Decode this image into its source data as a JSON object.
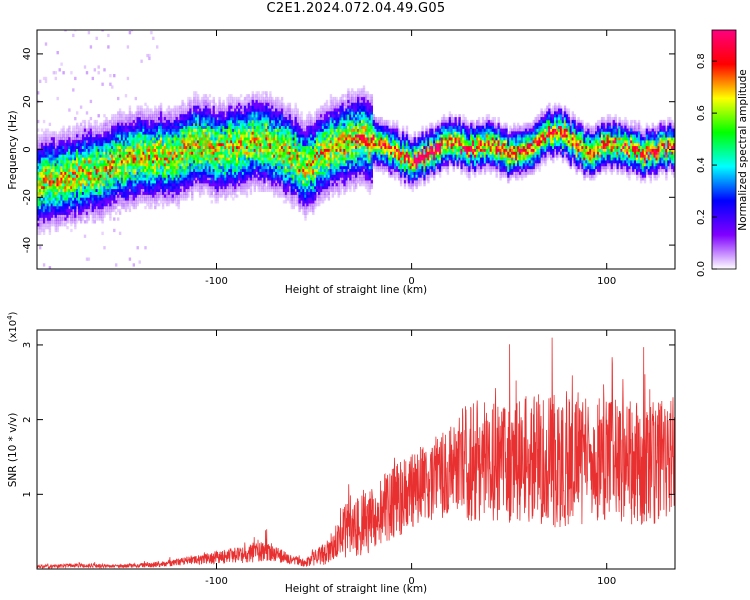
{
  "title": "C2E1.2024.072.04.49.G05",
  "chart_data": [
    {
      "type": "heatmap",
      "name": "spectrogram",
      "xlabel": "Height of straight line (km)",
      "ylabel": "Frequency (Hz)",
      "xlim": [
        -192,
        135
      ],
      "ylim": [
        -50,
        50
      ],
      "x_ticks": [
        -100,
        0,
        100
      ],
      "y_ticks": [
        -40,
        -20,
        0,
        20,
        40
      ],
      "colorbar": {
        "label": "Normalized spectral amplitude",
        "range": [
          0.0,
          0.92
        ],
        "ticks": [
          0.0,
          0.2,
          0.4,
          0.6,
          0.8
        ],
        "colormap": [
          "#ffffff",
          "#8000ff",
          "#0000ff",
          "#00ffff",
          "#00ff00",
          "#ffff00",
          "#ff0000",
          "#ff0080"
        ]
      },
      "ridge": {
        "x": [
          -192,
          -175,
          -160,
          -150,
          -140,
          -130,
          -120,
          -110,
          -100,
          -90,
          -80,
          -70,
          -60,
          -55,
          -50,
          -40,
          -30,
          -25,
          -20,
          -10,
          0,
          10,
          20,
          30,
          40,
          50,
          60,
          70,
          75,
          80,
          90,
          100,
          110,
          120,
          130,
          135
        ],
        "frequency": [
          -14,
          -12,
          -9,
          -6,
          -4,
          -3,
          -3,
          2,
          -1,
          0,
          4,
          1,
          -4,
          -9,
          -5,
          1,
          4,
          5,
          2,
          -1,
          -5,
          -2,
          3,
          0,
          2,
          -3,
          0,
          6,
          8,
          4,
          -2,
          2,
          0,
          -2,
          0,
          1
        ]
      }
    },
    {
      "type": "line",
      "name": "snr",
      "xlabel": "Height of straight line (km)",
      "ylabel": "SNR (10 * v/v)",
      "y_multiplier": "(x10^4)",
      "xlim": [
        -192,
        135
      ],
      "ylim": [
        0,
        3.2
      ],
      "x_ticks": [
        -100,
        0,
        100
      ],
      "y_ticks": [
        1,
        2,
        3
      ],
      "color": "#e83030",
      "envelope": {
        "x": [
          -192,
          -170,
          -150,
          -130,
          -110,
          -95,
          -85,
          -75,
          -65,
          -55,
          -45,
          -40,
          -35,
          -30,
          -25,
          -20,
          -15,
          -10,
          -5,
          0,
          5,
          10,
          20,
          25,
          30,
          40,
          50,
          60,
          70,
          80,
          90,
          100,
          110,
          120,
          135
        ],
        "mean": [
          0.03,
          0.05,
          0.04,
          0.06,
          0.12,
          0.17,
          0.2,
          0.25,
          0.16,
          0.08,
          0.2,
          0.32,
          0.5,
          0.6,
          0.62,
          0.68,
          0.78,
          0.85,
          0.98,
          1.05,
          1.12,
          1.2,
          1.3,
          1.45,
          1.48,
          1.42,
          1.45,
          1.48,
          1.45,
          1.5,
          1.45,
          1.48,
          1.45,
          1.42,
          1.45
        ],
        "spread": [
          0.02,
          0.03,
          0.02,
          0.04,
          0.06,
          0.1,
          0.12,
          0.15,
          0.08,
          0.05,
          0.15,
          0.2,
          0.35,
          0.45,
          0.45,
          0.45,
          0.5,
          0.5,
          0.55,
          0.5,
          0.55,
          0.55,
          0.6,
          0.7,
          0.85,
          0.8,
          0.85,
          0.85,
          0.9,
          0.95,
          0.85,
          0.85,
          0.85,
          0.85,
          0.8
        ]
      }
    }
  ]
}
